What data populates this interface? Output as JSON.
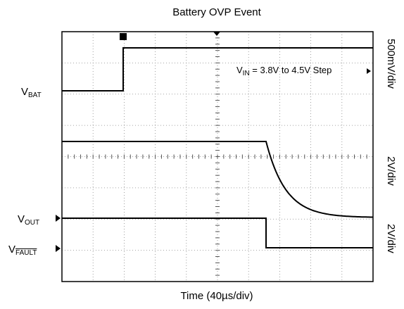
{
  "title": "Battery OVP Event",
  "x_label": "Time (40µs/div)",
  "annotation": {
    "main": "V",
    "sub": "IN",
    "rest": " = 3.8V to 4.5V Step"
  },
  "traces": [
    {
      "label": {
        "main": "V",
        "sub": "BAT"
      },
      "scale": "500mV/div"
    },
    {
      "label": {
        "main": "V",
        "sub": "OUT"
      },
      "scale": "2V/div"
    },
    {
      "label": {
        "main": "V",
        "sub": "FAULT"
      },
      "scale": "2V/div"
    }
  ]
}
